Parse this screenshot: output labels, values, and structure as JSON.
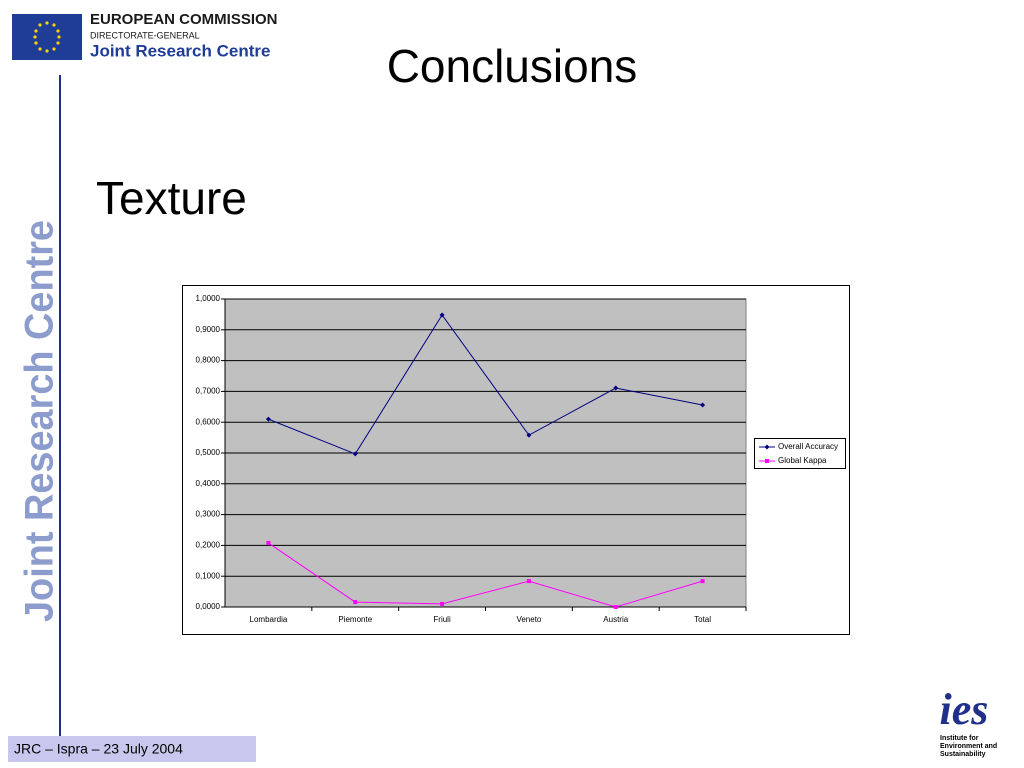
{
  "header": {
    "org": "EUROPEAN COMMISSION",
    "directorate": "DIRECTORATE-GENERAL",
    "centre": "Joint Research Centre"
  },
  "side_label": "Joint Research Centre",
  "title": "Conclusions",
  "subtitle": "Texture",
  "footer": "JRC – Ispra – 23 July 2004",
  "logo": {
    "name": "ies",
    "caption": [
      "Institute for",
      "Environment and",
      "Sustainability"
    ]
  },
  "chart_data": {
    "type": "line",
    "categories": [
      "Lombardia",
      "Piemonte",
      "Friuli",
      "Veneto",
      "Austria",
      "Total"
    ],
    "series": [
      {
        "name": "Overall Accuracy",
        "color": "#000080",
        "marker": "diamond",
        "values": [
          0.61,
          0.497,
          0.948,
          0.558,
          0.711,
          0.656
        ]
      },
      {
        "name": "Global Kappa",
        "color": "#ff00ff",
        "marker": "square",
        "values": [
          0.208,
          0.016,
          0.01,
          0.084,
          0.0,
          0.084
        ]
      }
    ],
    "ylim": [
      0,
      1
    ],
    "yticks": [
      {
        "value": 0,
        "label": "0,0000"
      },
      {
        "value": 0.1,
        "label": "0,1000"
      },
      {
        "value": 0.2,
        "label": "0,2000"
      },
      {
        "value": 0.3,
        "label": "0,3000"
      },
      {
        "value": 0.4,
        "label": "0,4000"
      },
      {
        "value": 0.5,
        "label": "0,5000"
      },
      {
        "value": 0.6,
        "label": "0,6000"
      },
      {
        "value": 0.7,
        "label": "0,7000"
      },
      {
        "value": 0.8,
        "label": "0,8000"
      },
      {
        "value": 0.9,
        "label": "0,9000"
      },
      {
        "value": 1,
        "label": "1,0000"
      }
    ],
    "grid": true,
    "plot_background": "#c0c0c0",
    "legend": "right"
  }
}
